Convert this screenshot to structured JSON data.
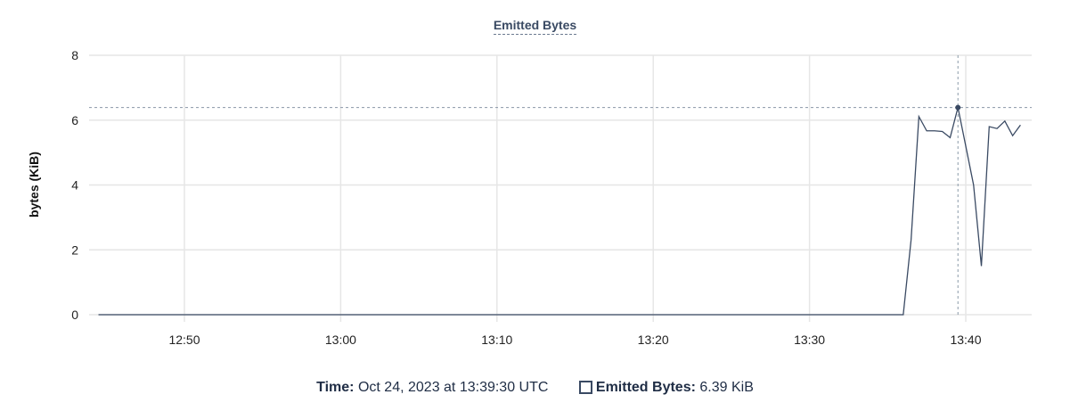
{
  "chart_data": {
    "type": "line",
    "title": "Emitted Bytes",
    "xlabel": "",
    "ylabel": "bytes (KiB)",
    "ylim": [
      0,
      8
    ],
    "yticks": [
      0,
      2,
      4,
      6,
      8
    ],
    "xlim": [
      "12:44:00",
      "13:44:15"
    ],
    "xticks": [
      "12:50",
      "13:00",
      "13:10",
      "13:20",
      "13:30",
      "13:40"
    ],
    "grid": true,
    "series": [
      {
        "name": "Emitted Bytes",
        "color": "#3a4a63",
        "x": [
          "12:44:30",
          "13:36:00",
          "13:36:30",
          "13:37:00",
          "13:37:30",
          "13:38:00",
          "13:38:30",
          "13:39:00",
          "13:39:30",
          "13:40:00",
          "13:40:30",
          "13:41:00",
          "13:41:30",
          "13:42:00",
          "13:42:30",
          "13:43:00",
          "13:43:30"
        ],
        "y": [
          0,
          0,
          2.3,
          6.11,
          5.67,
          5.67,
          5.65,
          5.46,
          6.39,
          5.2,
          4.0,
          1.5,
          5.8,
          5.74,
          5.97,
          5.52,
          5.85
        ]
      }
    ],
    "hover": {
      "time": "13:39:30",
      "value": 6.39
    }
  },
  "legend": {
    "time_label": "Time:",
    "time_value": "Oct 24, 2023 at 13:39:30 UTC",
    "series_label": "Emitted Bytes:",
    "series_value": "6.39 KiB"
  }
}
